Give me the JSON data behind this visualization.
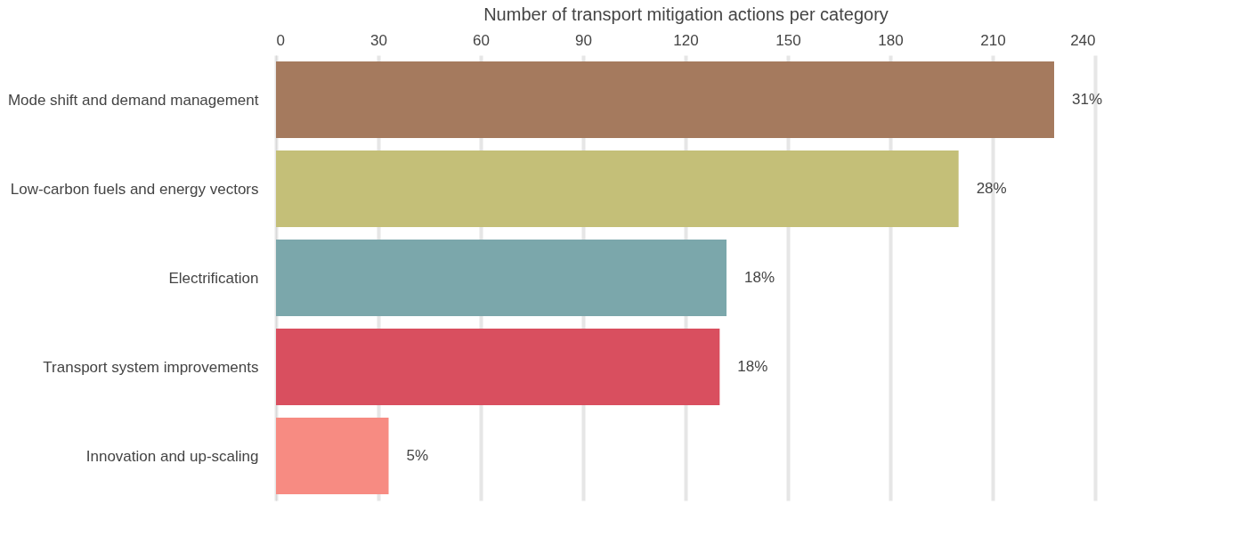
{
  "chart_data": {
    "type": "bar",
    "orientation": "horizontal",
    "xlabel": "Number of transport mitigation actions per category",
    "categories": [
      "Mode shift and demand management",
      "Low-carbon fuels and energy vectors",
      "Electrification",
      "Transport system improvements",
      "Innovation and up-scaling"
    ],
    "values": [
      228,
      200,
      132,
      130,
      33
    ],
    "colors": [
      "#a57a5e",
      "#c4bf78",
      "#7ba7ab",
      "#d94f5f",
      "#f78b82"
    ],
    "annotations": [
      {
        "text": "31%",
        "x": 228,
        "y": "Mode shift and demand management"
      },
      {
        "text": "28%",
        "x": 200,
        "y": "Low-carbon fuels and energy vectors"
      },
      {
        "text": "18%",
        "x": 132,
        "y": "Electrification"
      },
      {
        "text": "18%",
        "x": 130,
        "y": "Transport system improvements"
      },
      {
        "text": "5%",
        "x": 33,
        "y": "Innovation and up-scaling"
      }
    ],
    "xlim": [
      0,
      240
    ],
    "xticks": [
      0,
      30,
      60,
      90,
      120,
      150,
      180,
      210,
      240
    ],
    "grid": "x"
  }
}
